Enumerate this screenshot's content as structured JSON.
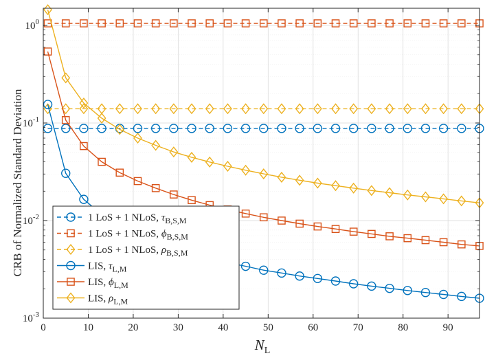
{
  "chart_data": {
    "type": "line",
    "y_scale": "log",
    "xlabel": "N",
    "xlabel_sub": "L",
    "ylabel": "CRB of Normalized Standard Deviation",
    "xlim": [
      0,
      97
    ],
    "ylim": [
      0.001,
      1.5
    ],
    "x_ticks": [
      0,
      10,
      20,
      30,
      40,
      50,
      60,
      70,
      80,
      90
    ],
    "x_tick_labels": [
      "0",
      "10",
      "20",
      "30",
      "40",
      "50",
      "60",
      "70",
      "80",
      "90"
    ],
    "y_ticks": [
      0.001,
      0.01,
      0.1,
      1
    ],
    "y_tick_base": "10",
    "y_tick_exponents": [
      "-3",
      "-2",
      "-1",
      "0"
    ],
    "grid": true,
    "legend_position": "lower-left",
    "x": [
      1,
      5,
      9,
      13,
      17,
      21,
      25,
      29,
      33,
      37,
      41,
      45,
      49,
      53,
      57,
      61,
      65,
      69,
      73,
      77,
      81,
      85,
      89,
      93,
      97
    ],
    "series": [
      {
        "name": "1 LoS + 1 NLoS, τB,S,M",
        "label_prefix": "1 LoS + 1 NLoS, ",
        "symbol": "τ",
        "subscript": "B,S,M",
        "color": "#0072BD",
        "marker": "circle",
        "dash": true,
        "values": [
          0.088,
          0.088,
          0.088,
          0.088,
          0.088,
          0.088,
          0.088,
          0.088,
          0.088,
          0.088,
          0.088,
          0.088,
          0.088,
          0.088,
          0.088,
          0.088,
          0.088,
          0.088,
          0.088,
          0.088,
          0.088,
          0.088,
          0.088,
          0.088,
          0.088
        ]
      },
      {
        "name": "1 LoS + 1 NLoS, ϕB,S,M",
        "label_prefix": "1 LoS + 1 NLoS, ",
        "symbol": "ϕ",
        "subscript": "B,S,M",
        "color": "#D95319",
        "marker": "square",
        "dash": true,
        "values": [
          1.05,
          1.05,
          1.05,
          1.05,
          1.05,
          1.05,
          1.05,
          1.05,
          1.05,
          1.05,
          1.05,
          1.05,
          1.05,
          1.05,
          1.05,
          1.05,
          1.05,
          1.05,
          1.05,
          1.05,
          1.05,
          1.05,
          1.05,
          1.05,
          1.05
        ]
      },
      {
        "name": "1 LoS + 1 NLoS, ρB,S,M",
        "label_prefix": "1 LoS + 1 NLoS, ",
        "symbol": "ρ",
        "subscript": "B,S,M",
        "color": "#EDB120",
        "marker": "diamond",
        "dash": true,
        "values": [
          0.14,
          0.14,
          0.14,
          0.14,
          0.14,
          0.14,
          0.14,
          0.14,
          0.14,
          0.14,
          0.14,
          0.14,
          0.14,
          0.14,
          0.14,
          0.14,
          0.14,
          0.14,
          0.14,
          0.14,
          0.14,
          0.14,
          0.14,
          0.14,
          0.14
        ]
      },
      {
        "name": "LIS, τL,M",
        "label_prefix": "LIS, ",
        "symbol": "τ",
        "subscript": "L,M",
        "color": "#0072BD",
        "marker": "circle",
        "dash": false,
        "values": [
          0.155,
          0.0305,
          0.0165,
          0.0115,
          0.0088,
          0.0071,
          0.006,
          0.0052,
          0.0046,
          0.0041,
          0.0037,
          0.0034,
          0.0031,
          0.0029,
          0.0027,
          0.00255,
          0.0024,
          0.00225,
          0.00213,
          0.00202,
          0.00192,
          0.00183,
          0.00175,
          0.00167,
          0.0016
        ]
      },
      {
        "name": "LIS, ϕL,M",
        "label_prefix": "LIS, ",
        "symbol": "ϕ",
        "subscript": "L,M",
        "color": "#D95319",
        "marker": "square",
        "dash": false,
        "values": [
          0.54,
          0.107,
          0.058,
          0.04,
          0.031,
          0.0254,
          0.0215,
          0.0185,
          0.0162,
          0.0144,
          0.013,
          0.0118,
          0.0108,
          0.01,
          0.0093,
          0.0087,
          0.0082,
          0.0077,
          0.0073,
          0.0069,
          0.0066,
          0.0063,
          0.006,
          0.0057,
          0.0055
        ]
      },
      {
        "name": "LIS, ρL,M",
        "label_prefix": "LIS, ",
        "symbol": "ρ",
        "subscript": "L,M",
        "color": "#EDB120",
        "marker": "diamond",
        "dash": false,
        "values": [
          1.45,
          0.29,
          0.16,
          0.112,
          0.086,
          0.07,
          0.059,
          0.0505,
          0.0445,
          0.0398,
          0.036,
          0.0328,
          0.0301,
          0.0278,
          0.0259,
          0.0242,
          0.0228,
          0.0215,
          0.0203,
          0.0193,
          0.0183,
          0.0175,
          0.0167,
          0.0159,
          0.0152
        ]
      }
    ]
  }
}
